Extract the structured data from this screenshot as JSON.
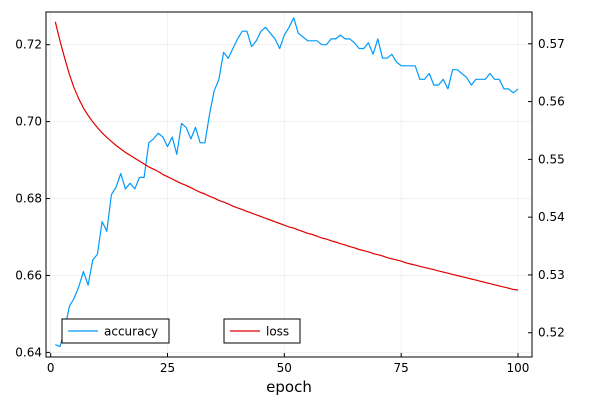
{
  "chart_data": {
    "type": "line",
    "title": "",
    "xlabel": "epoch",
    "ylabel_left": "",
    "ylabel_right": "",
    "xlim": [
      -1,
      103
    ],
    "ylim_left": [
      0.6388,
      0.7285
    ],
    "ylim_right": [
      0.5158,
      0.5755
    ],
    "x_ticks": [
      0,
      25,
      50,
      75,
      100
    ],
    "y_left_ticks": [
      0.64,
      0.66,
      0.68,
      0.7,
      0.72
    ],
    "y_left_tick_labels": [
      "0.64",
      "0.66",
      "0.68",
      "0.70",
      "0.72"
    ],
    "y_right_ticks": [
      0.52,
      0.53,
      0.54,
      0.55,
      0.56,
      0.57
    ],
    "y_right_tick_labels": [
      "0.52",
      "0.53",
      "0.54",
      "0.55",
      "0.56",
      "0.57"
    ],
    "grid": true,
    "legend_placement": "bottom",
    "series": [
      {
        "name": "accuracy",
        "axis": "left",
        "color": "#009AFA",
        "x": [
          1,
          2,
          3,
          4,
          5,
          6,
          7,
          8,
          9,
          10,
          11,
          12,
          13,
          14,
          15,
          16,
          17,
          18,
          19,
          20,
          21,
          22,
          23,
          24,
          25,
          26,
          27,
          28,
          29,
          30,
          31,
          32,
          33,
          34,
          35,
          36,
          37,
          38,
          39,
          40,
          41,
          42,
          43,
          44,
          45,
          46,
          47,
          48,
          49,
          50,
          51,
          52,
          53,
          54,
          55,
          56,
          57,
          58,
          59,
          60,
          61,
          62,
          63,
          64,
          65,
          66,
          67,
          68,
          69,
          70,
          71,
          72,
          73,
          74,
          75,
          76,
          77,
          78,
          79,
          80,
          81,
          82,
          83,
          84,
          85,
          86,
          87,
          88,
          89,
          90,
          91,
          92,
          93,
          94,
          95,
          96,
          97,
          98,
          99,
          100
        ],
        "values": [
          0.642,
          0.6415,
          0.646,
          0.652,
          0.654,
          0.657,
          0.661,
          0.6575,
          0.664,
          0.6655,
          0.674,
          0.6715,
          0.681,
          0.683,
          0.6865,
          0.6825,
          0.684,
          0.6825,
          0.6855,
          0.6855,
          0.6945,
          0.6955,
          0.697,
          0.696,
          0.6935,
          0.696,
          0.6915,
          0.6995,
          0.6985,
          0.6955,
          0.6985,
          0.6945,
          0.6945,
          0.702,
          0.708,
          0.711,
          0.718,
          0.7165,
          0.719,
          0.7215,
          0.7235,
          0.7235,
          0.7195,
          0.721,
          0.7235,
          0.7245,
          0.723,
          0.7215,
          0.719,
          0.7225,
          0.7245,
          0.727,
          0.723,
          0.722,
          0.721,
          0.721,
          0.721,
          0.72,
          0.72,
          0.7215,
          0.7215,
          0.7225,
          0.7215,
          0.7215,
          0.7205,
          0.719,
          0.719,
          0.7205,
          0.7175,
          0.7215,
          0.7165,
          0.7165,
          0.7175,
          0.7155,
          0.7145,
          0.7145,
          0.7145,
          0.7145,
          0.711,
          0.711,
          0.7125,
          0.7095,
          0.7095,
          0.711,
          0.7085,
          0.7135,
          0.7135,
          0.7125,
          0.7115,
          0.7095,
          0.711,
          0.711,
          0.711,
          0.7125,
          0.711,
          0.711,
          0.7085,
          0.7085,
          0.7075,
          0.7085
        ]
      },
      {
        "name": "loss",
        "axis": "right",
        "color": "#E00000",
        "x": [
          1,
          2,
          3,
          4,
          5,
          6,
          7,
          8,
          9,
          10,
          11,
          12,
          13,
          14,
          15,
          16,
          17,
          18,
          19,
          20,
          21,
          22,
          23,
          24,
          25,
          26,
          27,
          28,
          29,
          30,
          31,
          32,
          33,
          34,
          35,
          36,
          37,
          38,
          39,
          40,
          41,
          42,
          43,
          44,
          45,
          46,
          47,
          48,
          49,
          50,
          51,
          52,
          53,
          54,
          55,
          56,
          57,
          58,
          59,
          60,
          61,
          62,
          63,
          64,
          65,
          66,
          67,
          68,
          69,
          70,
          71,
          72,
          73,
          74,
          75,
          76,
          77,
          78,
          79,
          80,
          81,
          82,
          83,
          84,
          85,
          86,
          87,
          88,
          89,
          90,
          91,
          92,
          93,
          94,
          95,
          96,
          97,
          98,
          99,
          100
        ],
        "values": [
          0.5738,
          0.5705,
          0.5675,
          0.5647,
          0.5624,
          0.5605,
          0.5589,
          0.5576,
          0.5565,
          0.5555,
          0.5546,
          0.5538,
          0.5531,
          0.5524,
          0.5518,
          0.5512,
          0.5507,
          0.5502,
          0.5497,
          0.5492,
          0.5487,
          0.5483,
          0.5479,
          0.5474,
          0.547,
          0.5466,
          0.5462,
          0.5458,
          0.5455,
          0.5451,
          0.5447,
          0.5443,
          0.544,
          0.5436,
          0.5433,
          0.5429,
          0.5426,
          0.5423,
          0.5419,
          0.5416,
          0.5413,
          0.541,
          0.5407,
          0.5404,
          0.5401,
          0.5398,
          0.5395,
          0.5392,
          0.5389,
          0.5386,
          0.5383,
          0.5381,
          0.5378,
          0.5375,
          0.5372,
          0.537,
          0.5367,
          0.5364,
          0.5362,
          0.5359,
          0.5357,
          0.5354,
          0.5352,
          0.5349,
          0.5347,
          0.5344,
          0.5342,
          0.534,
          0.5337,
          0.5335,
          0.5333,
          0.533,
          0.5328,
          0.5326,
          0.5324,
          0.5321,
          0.5319,
          0.5317,
          0.5315,
          0.5313,
          0.5311,
          0.5309,
          0.5307,
          0.5305,
          0.5303,
          0.5301,
          0.5299,
          0.5297,
          0.5295,
          0.5293,
          0.5291,
          0.5289,
          0.5287,
          0.5285,
          0.5283,
          0.5281,
          0.5279,
          0.5277,
          0.5275,
          0.5274
        ]
      }
    ]
  }
}
